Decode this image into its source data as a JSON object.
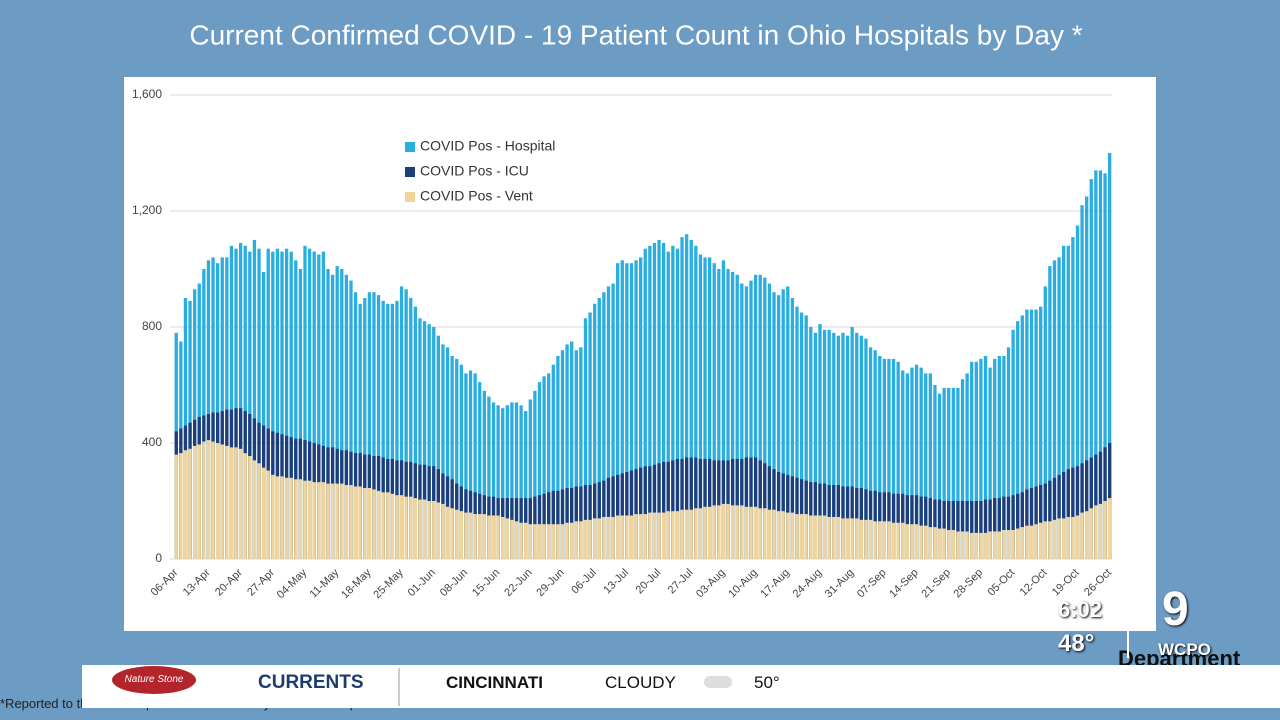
{
  "chart_data": {
    "type": "bar",
    "title": "Current Confirmed COVID - 19 Patient Count in Ohio Hospitals by Day *",
    "categories": [
      "06-Apr",
      null,
      null,
      null,
      null,
      null,
      null,
      "13-Apr",
      null,
      null,
      null,
      null,
      null,
      null,
      "20-Apr",
      null,
      null,
      null,
      null,
      null,
      null,
      "27-Apr",
      null,
      null,
      null,
      null,
      null,
      null,
      "04-May",
      null,
      null,
      null,
      null,
      null,
      null,
      "11-May",
      null,
      null,
      null,
      null,
      null,
      null,
      "18-May",
      null,
      null,
      null,
      null,
      null,
      null,
      "25-May",
      null,
      null,
      null,
      null,
      null,
      null,
      "01-Jun",
      null,
      null,
      null,
      null,
      null,
      null,
      "08-Jun",
      null,
      null,
      null,
      null,
      null,
      null,
      "15-Jun",
      null,
      null,
      null,
      null,
      null,
      null,
      "22-Jun",
      null,
      null,
      null,
      null,
      null,
      null,
      "29-Jun",
      null,
      null,
      null,
      null,
      null,
      null,
      "06-Jul",
      null,
      null,
      null,
      null,
      null,
      null,
      "13-Jul",
      null,
      null,
      null,
      null,
      null,
      null,
      "20-Jul",
      null,
      null,
      null,
      null,
      null,
      null,
      "27-Jul",
      null,
      null,
      null,
      null,
      null,
      null,
      "03-Aug",
      null,
      null,
      null,
      null,
      null,
      null,
      "10-Aug",
      null,
      null,
      null,
      null,
      null,
      null,
      "17-Aug",
      null,
      null,
      null,
      null,
      null,
      null,
      "24-Aug",
      null,
      null,
      null,
      null,
      null,
      null,
      "31-Aug",
      null,
      null,
      null,
      null,
      null,
      null,
      "07-Sep",
      null,
      null,
      null,
      null,
      null,
      null,
      "14-Sep",
      null,
      null,
      null,
      null,
      null,
      null,
      "21-Sep",
      null,
      null,
      null,
      null,
      null,
      null,
      "28-Sep",
      null,
      null,
      null,
      null,
      null,
      null,
      "05-Oct",
      null,
      null,
      null,
      null,
      null,
      null,
      "12-Oct",
      null,
      null,
      null,
      null,
      null,
      null,
      "19-Oct",
      null,
      null,
      null,
      null,
      null,
      null,
      "26-Oct"
    ],
    "series": [
      {
        "name": "COVID Pos - Hospital",
        "color": "#2aaee0",
        "values": [
          780,
          750,
          900,
          890,
          930,
          950,
          1000,
          1030,
          1040,
          1020,
          1040,
          1040,
          1080,
          1070,
          1090,
          1080,
          1060,
          1100,
          1070,
          990,
          1070,
          1060,
          1070,
          1060,
          1070,
          1060,
          1030,
          1000,
          1080,
          1070,
          1060,
          1050,
          1060,
          1000,
          980,
          1010,
          1000,
          980,
          960,
          920,
          880,
          900,
          920,
          920,
          910,
          890,
          880,
          880,
          890,
          940,
          930,
          900,
          870,
          830,
          820,
          810,
          800,
          770,
          740,
          730,
          700,
          690,
          670,
          640,
          650,
          640,
          610,
          580,
          560,
          540,
          530,
          520,
          530,
          540,
          540,
          530,
          510,
          550,
          580,
          610,
          630,
          640,
          670,
          700,
          720,
          740,
          750,
          720,
          730,
          830,
          850,
          880,
          900,
          920,
          940,
          950,
          1020,
          1030,
          1020,
          1020,
          1030,
          1040,
          1070,
          1080,
          1090,
          1100,
          1090,
          1060,
          1080,
          1070,
          1110,
          1120,
          1100,
          1080,
          1050,
          1040,
          1040,
          1020,
          1000,
          1030,
          1000,
          990,
          980,
          950,
          940,
          960,
          980,
          980,
          970,
          950,
          920,
          910,
          930,
          940,
          900,
          870,
          850,
          840,
          800,
          780,
          810,
          790,
          790,
          780,
          770,
          780,
          770,
          800,
          780,
          770,
          760,
          730,
          720,
          700,
          690,
          690,
          690,
          680,
          650,
          640,
          660,
          670,
          660,
          640,
          640,
          600,
          570,
          590,
          590,
          590,
          590,
          620,
          640,
          680,
          680,
          690,
          700,
          660,
          690,
          700,
          700,
          730,
          790,
          820,
          840,
          860,
          860,
          860,
          870,
          940,
          1010,
          1030,
          1040,
          1080,
          1080,
          1110,
          1150,
          1220,
          1250,
          1310,
          1340,
          1340,
          1330,
          1400
        ]
      },
      {
        "name": "COVID Pos - ICU",
        "color": "#1e3d7b",
        "values": [
          440,
          450,
          460,
          470,
          480,
          490,
          495,
          500,
          505,
          505,
          510,
          515,
          515,
          520,
          520,
          510,
          500,
          485,
          470,
          460,
          450,
          440,
          435,
          430,
          425,
          420,
          415,
          415,
          410,
          405,
          400,
          395,
          390,
          385,
          385,
          380,
          375,
          375,
          370,
          365,
          365,
          360,
          360,
          355,
          355,
          350,
          345,
          345,
          340,
          340,
          335,
          335,
          330,
          325,
          325,
          320,
          320,
          310,
          295,
          285,
          275,
          260,
          250,
          240,
          235,
          230,
          225,
          220,
          215,
          215,
          210,
          210,
          210,
          210,
          210,
          210,
          210,
          210,
          215,
          220,
          225,
          230,
          235,
          235,
          240,
          245,
          245,
          250,
          250,
          255,
          255,
          260,
          265,
          270,
          280,
          285,
          290,
          295,
          300,
          305,
          310,
          315,
          320,
          320,
          325,
          330,
          335,
          335,
          340,
          345,
          345,
          350,
          350,
          350,
          345,
          345,
          345,
          340,
          340,
          340,
          340,
          345,
          345,
          345,
          350,
          350,
          350,
          340,
          330,
          320,
          310,
          300,
          295,
          290,
          285,
          280,
          275,
          270,
          265,
          265,
          260,
          260,
          255,
          255,
          255,
          250,
          250,
          250,
          245,
          245,
          240,
          235,
          235,
          230,
          230,
          230,
          225,
          225,
          225,
          220,
          220,
          220,
          215,
          215,
          210,
          205,
          205,
          200,
          200,
          200,
          200,
          200,
          200,
          200,
          200,
          200,
          205,
          205,
          210,
          210,
          215,
          215,
          220,
          225,
          230,
          240,
          245,
          250,
          255,
          260,
          270,
          280,
          290,
          300,
          310,
          315,
          320,
          330,
          340,
          350,
          360,
          370,
          385,
          400
        ]
      },
      {
        "name": "COVID Pos - Vent",
        "color": "#f1d49c",
        "values": [
          360,
          365,
          375,
          380,
          390,
          395,
          405,
          410,
          405,
          400,
          395,
          390,
          385,
          385,
          380,
          365,
          355,
          340,
          330,
          315,
          305,
          290,
          285,
          285,
          280,
          280,
          275,
          275,
          270,
          270,
          265,
          265,
          265,
          260,
          260,
          260,
          260,
          255,
          255,
          250,
          250,
          245,
          245,
          240,
          235,
          230,
          230,
          225,
          220,
          220,
          215,
          215,
          210,
          205,
          205,
          200,
          200,
          195,
          190,
          180,
          175,
          170,
          165,
          160,
          160,
          155,
          155,
          155,
          150,
          150,
          150,
          145,
          140,
          135,
          130,
          125,
          125,
          120,
          120,
          120,
          120,
          120,
          120,
          120,
          120,
          125,
          125,
          130,
          130,
          135,
          135,
          140,
          140,
          145,
          145,
          145,
          150,
          150,
          150,
          150,
          155,
          155,
          155,
          160,
          160,
          160,
          160,
          165,
          165,
          165,
          170,
          170,
          170,
          175,
          175,
          180,
          180,
          185,
          185,
          190,
          190,
          185,
          185,
          185,
          180,
          180,
          180,
          175,
          175,
          170,
          170,
          165,
          165,
          160,
          160,
          155,
          155,
          155,
          150,
          150,
          150,
          150,
          145,
          145,
          145,
          140,
          140,
          140,
          140,
          135,
          135,
          135,
          130,
          130,
          130,
          130,
          125,
          125,
          125,
          120,
          120,
          120,
          115,
          115,
          110,
          110,
          105,
          105,
          100,
          100,
          95,
          95,
          95,
          90,
          90,
          90,
          90,
          95,
          95,
          95,
          100,
          100,
          100,
          105,
          110,
          115,
          115,
          120,
          125,
          130,
          130,
          135,
          140,
          140,
          145,
          145,
          150,
          160,
          165,
          175,
          185,
          190,
          200,
          210
        ]
      }
    ],
    "ylim": [
      0,
      1600
    ],
    "yticks": [
      0,
      400,
      800,
      {
        "value": 1200,
        "label": "1,200"
      },
      {
        "value": 1600,
        "label": "1,600"
      }
    ],
    "grid": true,
    "legend": "top-left"
  },
  "overlay": {
    "footnote": "*Reported to the Ohio Department of Health by the Ohio Hospital Association",
    "department": "Department",
    "currents": "CURRENTS",
    "city": "CINCINNATI",
    "weather": "CLOUDY",
    "forecast": "50°",
    "time": "6:02",
    "temp": "48°",
    "channel": "9",
    "station": "WCPO",
    "sponsor": "Nature Stone"
  }
}
